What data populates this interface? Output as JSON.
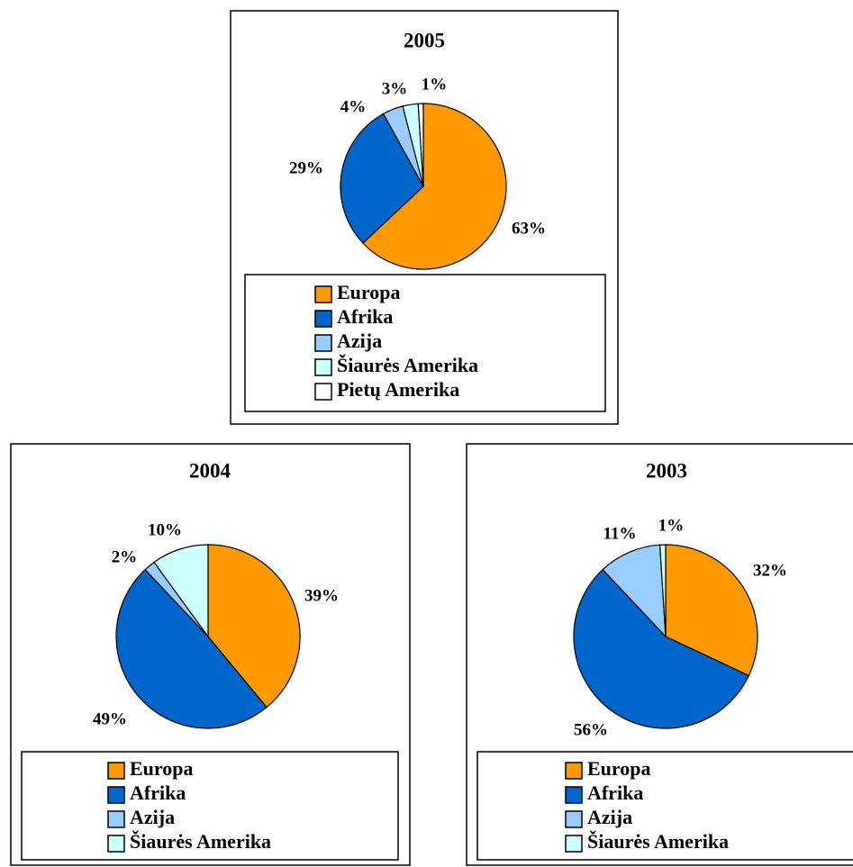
{
  "chart_data": [
    {
      "type": "pie",
      "title": "2005",
      "categories": [
        "Europa",
        "Afrika",
        "Azija",
        "Šiaurės Amerika",
        "Pietų Amerika"
      ],
      "values": [
        63,
        29,
        4,
        3,
        1
      ],
      "value_labels": [
        "63%",
        "29%",
        "4%",
        "3%",
        "1%"
      ],
      "colors": [
        "#ff9900",
        "#0066cc",
        "#99ccff",
        "#ccffff",
        "#ffffff"
      ]
    },
    {
      "type": "pie",
      "title": "2004",
      "categories": [
        "Europa",
        "Afrika",
        "Azija",
        "Šiaurės Amerika"
      ],
      "values": [
        39,
        49,
        2,
        10
      ],
      "value_labels": [
        "39%",
        "49%",
        "2%",
        "10%"
      ],
      "colors": [
        "#ff9900",
        "#0066cc",
        "#99ccff",
        "#ccffff"
      ]
    },
    {
      "type": "pie",
      "title": "2003",
      "categories": [
        "Europa",
        "Afrika",
        "Azija",
        "Šiaurės Amerika"
      ],
      "values": [
        32,
        56,
        11,
        1
      ],
      "value_labels": [
        "32%",
        "56%",
        "11%",
        "1%"
      ],
      "colors": [
        "#ff9900",
        "#0066cc",
        "#99ccff",
        "#ccffff"
      ]
    }
  ]
}
